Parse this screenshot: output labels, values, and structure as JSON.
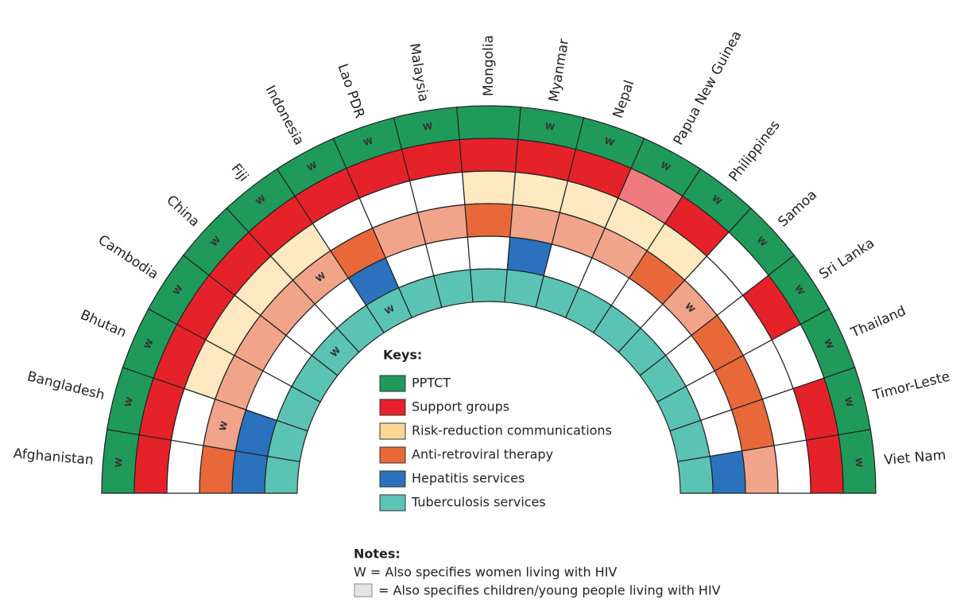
{
  "keys_title": "Keys:",
  "keys": [
    {
      "label": "PPTCT",
      "color": "#1f9a5a"
    },
    {
      "label": "Support groups",
      "color": "#e52229"
    },
    {
      "label": "Risk-reduction communications",
      "color": "#fcd894"
    },
    {
      "label": "Anti-retroviral therapy",
      "color": "#e8683a"
    },
    {
      "label": "Hepatitis services",
      "color": "#2a72bd"
    },
    {
      "label": "Tuberculosis services",
      "color": "#5bc3b4"
    }
  ],
  "countries": [
    {
      "name": "Afghanistan",
      "cells": [
        [
          "solid",
          "W"
        ],
        [
          "solid"
        ],
        [
          "none"
        ],
        [
          "solid"
        ],
        [
          "solid"
        ],
        [
          "solid"
        ]
      ]
    },
    {
      "name": "Bangladesh",
      "cells": [
        [
          "solid",
          "W"
        ],
        [
          "solid"
        ],
        [
          "none"
        ],
        [
          "hatched",
          "W"
        ],
        [
          "solid"
        ],
        [
          "solid"
        ]
      ]
    },
    {
      "name": "Bhutan",
      "cells": [
        [
          "solid",
          "W"
        ],
        [
          "solid"
        ],
        [
          "hatched"
        ],
        [
          "hatched"
        ],
        [
          "none"
        ],
        [
          "solid"
        ]
      ]
    },
    {
      "name": "Cambodia",
      "cells": [
        [
          "solid",
          "W"
        ],
        [
          "solid"
        ],
        [
          "hatched"
        ],
        [
          "hatched"
        ],
        [
          "none"
        ],
        [
          "solid"
        ]
      ]
    },
    {
      "name": "China",
      "cells": [
        [
          "solid",
          "W"
        ],
        [
          "solid"
        ],
        [
          "hatched"
        ],
        [
          "hatched"
        ],
        [
          "none"
        ],
        [
          "solid",
          "W"
        ]
      ]
    },
    {
      "name": "Fiji",
      "cells": [
        [
          "solid",
          "W"
        ],
        [
          "solid"
        ],
        [
          "hatched"
        ],
        [
          "hatched",
          "W"
        ],
        [
          "none"
        ],
        [
          "solid"
        ]
      ]
    },
    {
      "name": "Indonesia",
      "cells": [
        [
          "solid",
          "W"
        ],
        [
          "solid"
        ],
        [
          "none"
        ],
        [
          "solid"
        ],
        [
          "solid"
        ],
        [
          "solid",
          "W"
        ]
      ]
    },
    {
      "name": "Lao PDR",
      "cells": [
        [
          "solid",
          "W"
        ],
        [
          "solid"
        ],
        [
          "none"
        ],
        [
          "hatched"
        ],
        [
          "none"
        ],
        [
          "solid"
        ]
      ]
    },
    {
      "name": "Malaysia",
      "cells": [
        [
          "solid",
          "W"
        ],
        [
          "solid"
        ],
        [
          "none"
        ],
        [
          "hatched"
        ],
        [
          "none"
        ],
        [
          "solid"
        ]
      ]
    },
    {
      "name": "Mongolia",
      "cells": [
        [
          "solid"
        ],
        [
          "solid"
        ],
        [
          "hatched"
        ],
        [
          "solid"
        ],
        [
          "none"
        ],
        [
          "solid"
        ]
      ]
    },
    {
      "name": "Myanmar",
      "cells": [
        [
          "solid",
          "W"
        ],
        [
          "solid"
        ],
        [
          "hatched"
        ],
        [
          "hatched"
        ],
        [
          "solid"
        ],
        [
          "solid"
        ]
      ]
    },
    {
      "name": "Nepal",
      "cells": [
        [
          "solid",
          "W"
        ],
        [
          "solid"
        ],
        [
          "hatched"
        ],
        [
          "hatched"
        ],
        [
          "none"
        ],
        [
          "solid"
        ]
      ]
    },
    {
      "name": "Papua New Guinea",
      "cells": [
        [
          "solid",
          "W"
        ],
        [
          "hatched"
        ],
        [
          "hatched"
        ],
        [
          "hatched"
        ],
        [
          "none"
        ],
        [
          "solid"
        ]
      ]
    },
    {
      "name": "Philippines",
      "cells": [
        [
          "solid",
          "W"
        ],
        [
          "solid"
        ],
        [
          "hatched"
        ],
        [
          "solid"
        ],
        [
          "none"
        ],
        [
          "solid"
        ]
      ]
    },
    {
      "name": "Samoa",
      "cells": [
        [
          "solid",
          "W"
        ],
        [
          "none"
        ],
        [
          "none"
        ],
        [
          "hatched",
          "W"
        ],
        [
          "none"
        ],
        [
          "solid"
        ]
      ]
    },
    {
      "name": "Sri Lanka",
      "cells": [
        [
          "solid",
          "W"
        ],
        [
          "solid"
        ],
        [
          "none"
        ],
        [
          "solid"
        ],
        [
          "none"
        ],
        [
          "solid"
        ]
      ]
    },
    {
      "name": "Thailand",
      "cells": [
        [
          "solid",
          "W"
        ],
        [
          "none"
        ],
        [
          "none"
        ],
        [
          "solid"
        ],
        [
          "none"
        ],
        [
          "solid"
        ]
      ]
    },
    {
      "name": "Timor-Leste",
      "cells": [
        [
          "solid",
          "W"
        ],
        [
          "solid"
        ],
        [
          "none"
        ],
        [
          "solid"
        ],
        [
          "none"
        ],
        [
          "solid"
        ]
      ]
    },
    {
      "name": "Viet Nam",
      "cells": [
        [
          "solid",
          "W"
        ],
        [
          "solid"
        ],
        [
          "none"
        ],
        [
          "hatched"
        ],
        [
          "solid"
        ],
        [
          "solid"
        ]
      ]
    }
  ],
  "notes": {
    "title": "Notes:",
    "women": "W = Also specifies women living with HIV",
    "children": "= Also specifies children/young people living with HIV"
  }
}
